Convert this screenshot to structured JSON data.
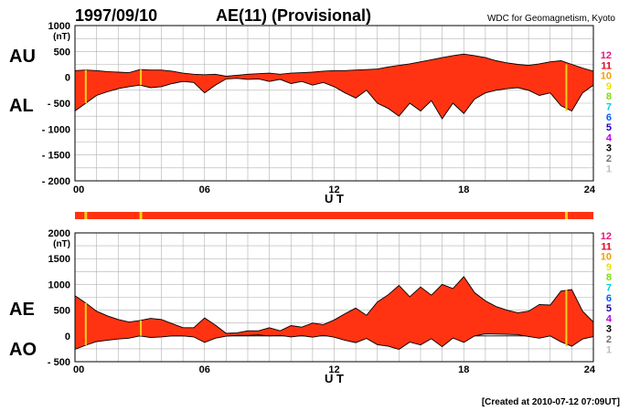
{
  "header": {
    "date": "1997/09/10",
    "title": "AE(11) (Provisional)",
    "source": "WDC for Geomagnetism, Kyoto"
  },
  "footer": {
    "created": "[Created at 2010-07-12 07:09UT]"
  },
  "legend": {
    "items": [
      {
        "label": "12",
        "color": "#e8197e"
      },
      {
        "label": "11",
        "color": "#e8001a"
      },
      {
        "label": "10",
        "color": "#f0a000"
      },
      {
        "label": "9",
        "color": "#e8e800"
      },
      {
        "label": "8",
        "color": "#80e000"
      },
      {
        "label": "7",
        "color": "#00d0e0"
      },
      {
        "label": "6",
        "color": "#0060ff"
      },
      {
        "label": "5",
        "color": "#2000c0"
      },
      {
        "label": "4",
        "color": "#c000e0"
      },
      {
        "label": "3",
        "color": "#000000"
      },
      {
        "label": "2",
        "color": "#707070"
      },
      {
        "label": "1",
        "color": "#c0c0c0"
      }
    ]
  },
  "colors": {
    "fill": "#ff3311",
    "outline": "#000000",
    "highlight": "#f0d020",
    "grid": "#b0b0b0"
  },
  "chart_data": [
    {
      "type": "area",
      "series": [
        {
          "name": "AU",
          "x": [
            0,
            0.5,
            1,
            1.5,
            2,
            2.5,
            3,
            3.5,
            4,
            4.5,
            5,
            5.5,
            6,
            6.5,
            7,
            7.5,
            8,
            8.5,
            9,
            9.5,
            10,
            10.5,
            11,
            11.5,
            12,
            12.5,
            13,
            13.5,
            14,
            14.5,
            15,
            15.5,
            16,
            16.5,
            17,
            17.5,
            18,
            18.5,
            19,
            19.5,
            20,
            20.5,
            21,
            21.5,
            22,
            22.5,
            23,
            23.5,
            24
          ],
          "values": [
            130,
            140,
            130,
            110,
            100,
            90,
            150,
            140,
            140,
            120,
            80,
            60,
            50,
            60,
            20,
            40,
            60,
            70,
            80,
            60,
            80,
            90,
            100,
            120,
            130,
            130,
            140,
            150,
            160,
            200,
            230,
            260,
            300,
            340,
            380,
            420,
            450,
            420,
            380,
            320,
            280,
            250,
            230,
            260,
            300,
            320,
            250,
            180,
            120
          ]
        },
        {
          "name": "AL",
          "x": [
            0,
            0.5,
            1,
            1.5,
            2,
            2.5,
            3,
            3.5,
            4,
            4.5,
            5,
            5.5,
            6,
            6.5,
            7,
            7.5,
            8,
            8.5,
            9,
            9.5,
            10,
            10.5,
            11,
            11.5,
            12,
            12.5,
            13,
            13.5,
            14,
            14.5,
            15,
            15.5,
            16,
            16.5,
            17,
            17.5,
            18,
            18.5,
            19,
            19.5,
            20,
            20.5,
            21,
            21.5,
            22,
            22.5,
            23,
            23.5,
            24
          ],
          "values": [
            -650,
            -500,
            -350,
            -280,
            -220,
            -180,
            -150,
            -200,
            -180,
            -120,
            -80,
            -100,
            -300,
            -150,
            -30,
            -20,
            -40,
            -30,
            -80,
            -40,
            -120,
            -80,
            -150,
            -100,
            -180,
            -300,
            -400,
            -250,
            -500,
            -600,
            -750,
            -500,
            -650,
            -450,
            -800,
            -500,
            -700,
            -420,
            -300,
            -250,
            -220,
            -200,
            -250,
            -350,
            -300,
            -550,
            -650,
            -300,
            -150
          ]
        }
      ],
      "xlabel": "U T",
      "ylabel": "(nT)",
      "x_ticks": [
        "00",
        "06",
        "12",
        "18",
        "24"
      ],
      "xlim": [
        0,
        24
      ],
      "ylim": [
        -2000,
        1000
      ],
      "y_ticks": [
        1000,
        500,
        0,
        -500,
        -1000,
        -1500,
        -2000
      ],
      "y_tick_labels": [
        "1000",
        "500",
        "0",
        "- 500",
        "- 1000",
        "- 1500",
        "- 2000"
      ],
      "side_labels": [
        "AU",
        "AL"
      ],
      "highlights": [
        0.5,
        3.05,
        22.75
      ],
      "grid": true
    },
    {
      "type": "area",
      "series": [
        {
          "name": "AE",
          "x": [
            0,
            0.5,
            1,
            1.5,
            2,
            2.5,
            3,
            3.5,
            4,
            4.5,
            5,
            5.5,
            6,
            6.5,
            7,
            7.5,
            8,
            8.5,
            9,
            9.5,
            10,
            10.5,
            11,
            11.5,
            12,
            12.5,
            13,
            13.5,
            14,
            14.5,
            15,
            15.5,
            16,
            16.5,
            17,
            17.5,
            18,
            18.5,
            19,
            19.5,
            20,
            20.5,
            21,
            21.5,
            22,
            22.5,
            23,
            23.5,
            24
          ],
          "values": [
            780,
            640,
            480,
            390,
            320,
            270,
            300,
            340,
            320,
            240,
            160,
            160,
            350,
            210,
            50,
            60,
            100,
            100,
            160,
            100,
            200,
            170,
            250,
            220,
            310,
            430,
            540,
            400,
            660,
            800,
            980,
            760,
            950,
            790,
            1000,
            920,
            1150,
            840,
            680,
            570,
            500,
            450,
            480,
            610,
            600,
            870,
            900,
            480,
            270
          ]
        },
        {
          "name": "AO",
          "x": [
            0,
            0.5,
            1,
            1.5,
            2,
            2.5,
            3,
            3.5,
            4,
            4.5,
            5,
            5.5,
            6,
            6.5,
            7,
            7.5,
            8,
            8.5,
            9,
            9.5,
            10,
            10.5,
            11,
            11.5,
            12,
            12.5,
            13,
            13.5,
            14,
            14.5,
            15,
            15.5,
            16,
            16.5,
            17,
            17.5,
            18,
            18.5,
            19,
            19.5,
            20,
            20.5,
            21,
            21.5,
            22,
            22.5,
            23,
            23.5,
            24
          ],
          "values": [
            -260,
            -180,
            -110,
            -85,
            -60,
            -45,
            0,
            -30,
            -20,
            0,
            0,
            -20,
            -125,
            -45,
            -5,
            10,
            10,
            20,
            0,
            10,
            -20,
            5,
            -25,
            10,
            -25,
            -85,
            -130,
            -50,
            -170,
            -200,
            -260,
            -120,
            -175,
            -55,
            -210,
            -40,
            -125,
            0,
            40,
            35,
            30,
            25,
            -10,
            -45,
            0,
            -115,
            -200,
            -60,
            -15
          ]
        }
      ],
      "xlabel": "U T",
      "ylabel": "(nT)",
      "x_ticks": [
        "00",
        "06",
        "12",
        "18",
        "24"
      ],
      "xlim": [
        0,
        24
      ],
      "ylim": [
        -500,
        2000
      ],
      "y_ticks": [
        2000,
        1500,
        1000,
        500,
        0,
        -500
      ],
      "y_tick_labels": [
        "2000",
        "1500",
        "1000",
        "500",
        "0",
        "- 500"
      ],
      "side_labels": [
        "AE",
        "AO"
      ],
      "highlights": [
        0.5,
        3.05,
        22.75
      ],
      "grid": true
    }
  ]
}
